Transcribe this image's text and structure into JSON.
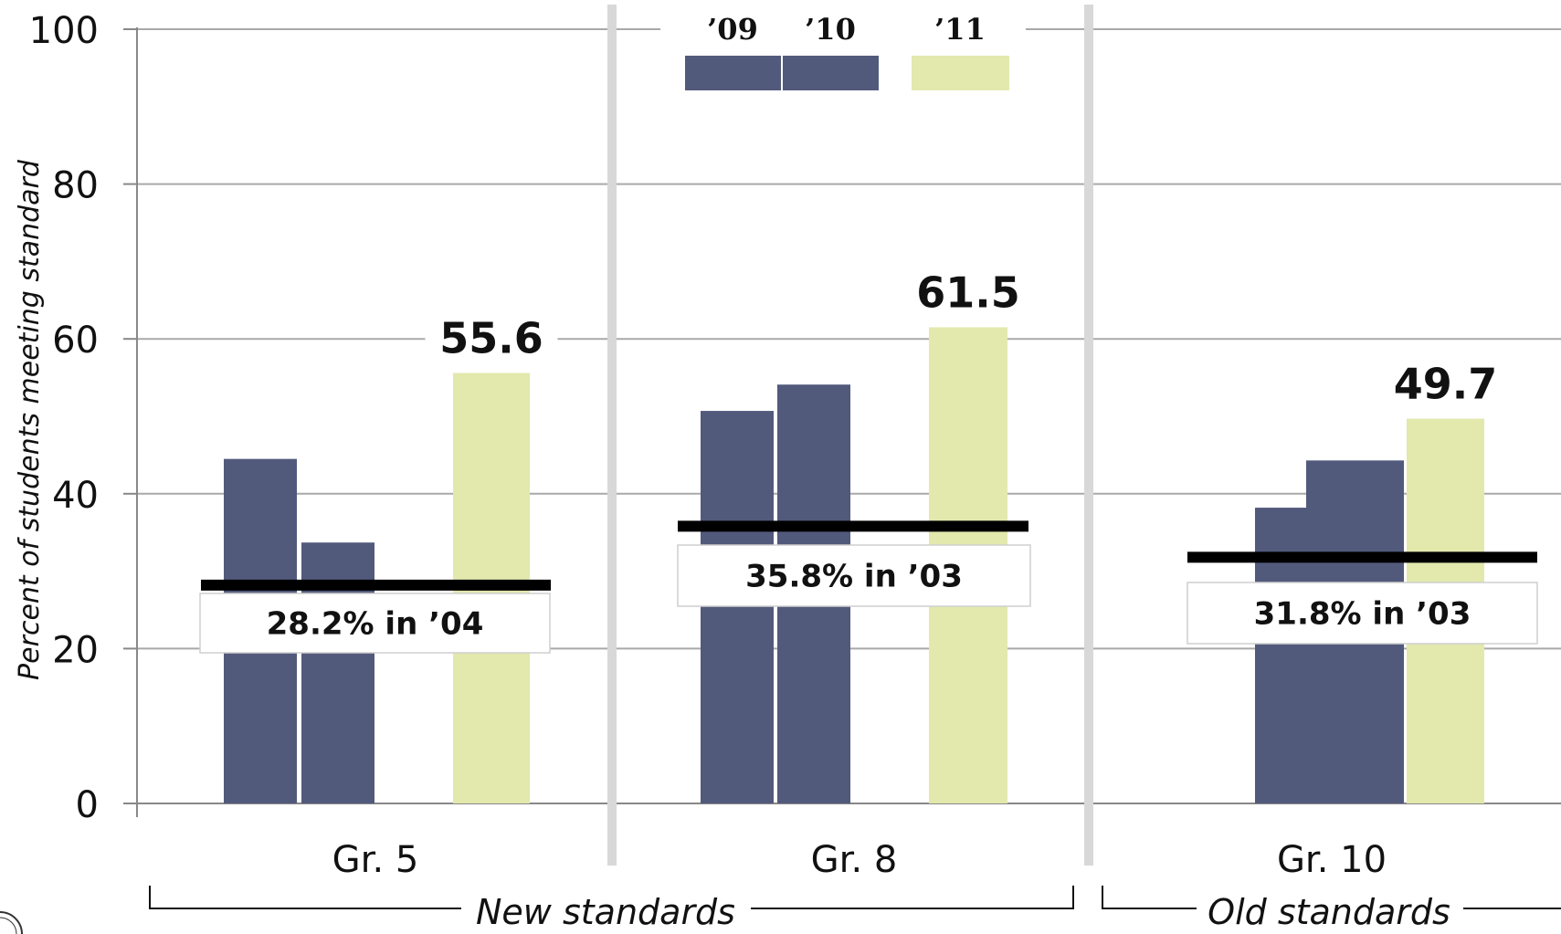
{
  "chart_data": {
    "type": "bar",
    "ylabel": "Percent of students meeting standard",
    "ylim": [
      0,
      100
    ],
    "yticks": [
      0,
      20,
      40,
      60,
      80,
      100
    ],
    "grid": true,
    "categories": [
      "Gr. 5",
      "Gr. 8",
      "Gr. 10"
    ],
    "series": [
      {
        "name": "’09",
        "color": "#525a7c",
        "values": [
          44.5,
          50.7,
          38.2
        ]
      },
      {
        "name": "’10",
        "color": "#525a7c",
        "values": [
          33.7,
          54.1,
          44.3
        ]
      },
      {
        "name": "’11",
        "color": "#e3e8ad",
        "values": [
          55.6,
          61.5,
          49.7
        ]
      }
    ],
    "value_labels": [
      "55.6",
      "61.5",
      "49.7"
    ],
    "baselines": [
      {
        "value": 28.2,
        "label": "28.2% in ’04"
      },
      {
        "value": 35.8,
        "label": "35.8% in ’03"
      },
      {
        "value": 31.8,
        "label": "31.8% in ’03"
      }
    ],
    "groups": [
      {
        "label": "New standards",
        "categories": [
          "Gr. 5",
          "Gr. 8"
        ]
      },
      {
        "label": "Old standards",
        "categories": [
          "Gr. 10"
        ]
      }
    ],
    "legend": {
      "placement": "top-center"
    }
  }
}
